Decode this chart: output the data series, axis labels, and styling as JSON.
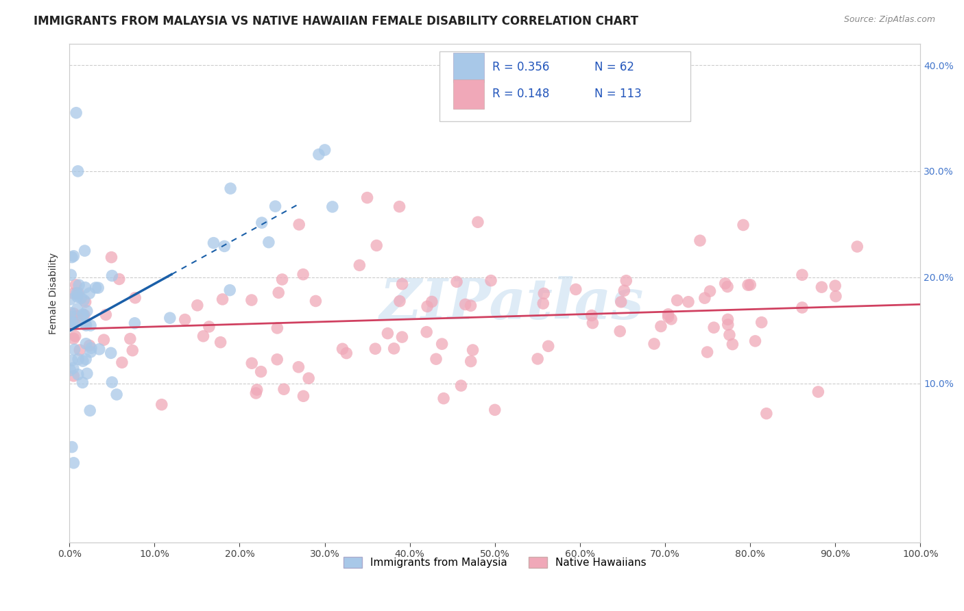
{
  "title": "IMMIGRANTS FROM MALAYSIA VS NATIVE HAWAIIAN FEMALE DISABILITY CORRELATION CHART",
  "source": "Source: ZipAtlas.com",
  "ylabel": "Female Disability",
  "watermark": "ZIPatlas",
  "legend_r1": "0.356",
  "legend_n1": "62",
  "legend_r2": "0.148",
  "legend_n2": "113",
  "blue_color": "#a8c8e8",
  "blue_line_color": "#1a5fa8",
  "pink_color": "#f0a8b8",
  "pink_line_color": "#d04060",
  "legend_label1": "Immigrants from Malaysia",
  "legend_label2": "Native Hawaiians",
  "text_color": "#2255bb",
  "xlim": [
    0.0,
    1.0
  ],
  "ylim": [
    -0.05,
    0.42
  ],
  "ytick_vals": [
    0.0,
    0.1,
    0.2,
    0.3,
    0.4
  ],
  "xtick_vals": [
    0.0,
    0.1,
    0.2,
    0.3,
    0.4,
    0.5,
    0.6,
    0.7,
    0.8,
    0.9,
    1.0
  ]
}
